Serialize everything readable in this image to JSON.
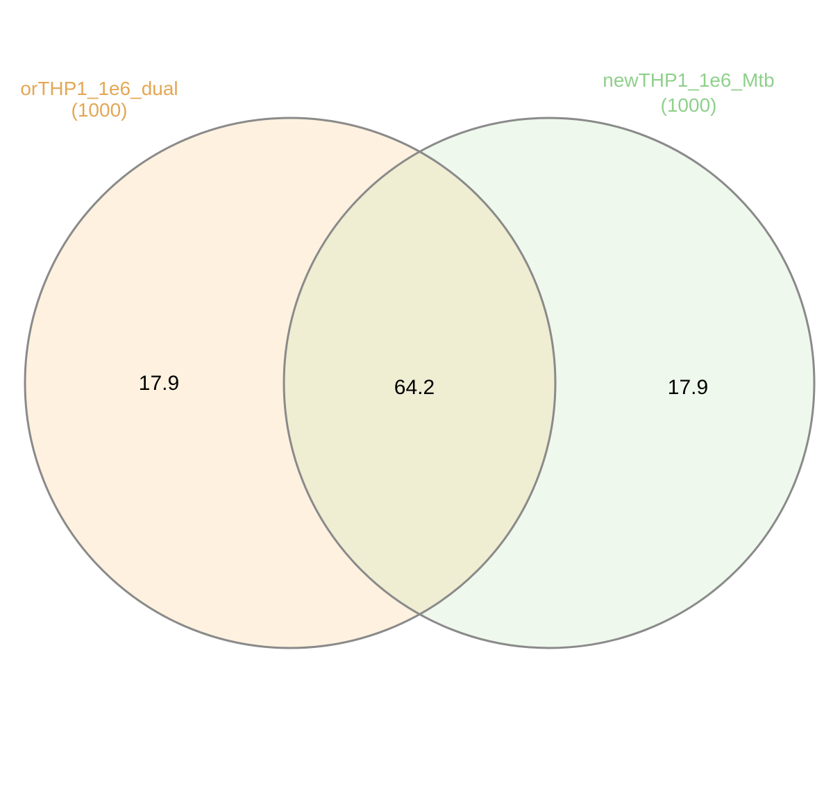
{
  "diagram": {
    "type": "venn",
    "sets": [
      {
        "name": "orTHP1_1e6_dual",
        "count": "(1000)",
        "color": "#e3a755",
        "fill": "#fef1df"
      },
      {
        "name": "newTHP1_1e6_Mtb",
        "count": "(1000)",
        "color": "#8fd08b",
        "fill": "#eef8ec"
      }
    ],
    "regions": {
      "only_a": "17.9",
      "overlap": "64.2",
      "only_b": "17.9"
    },
    "overlap_fill": "#efedd2",
    "outline_color": "#8a8a8a"
  }
}
